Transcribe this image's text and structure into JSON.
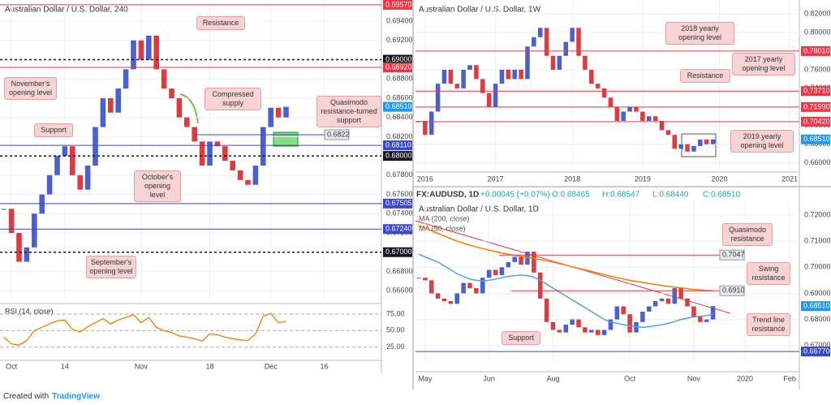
{
  "chart_data": [
    {
      "type": "candlestick",
      "title": "Australian Dollar / U.S. Dollar, 240",
      "categories": [
        null,
        "Oct",
        null,
        null,
        null,
        null,
        null,
        null,
        "14",
        null,
        null,
        null,
        null,
        null,
        null,
        null,
        null,
        null,
        "Nov",
        null,
        null,
        null,
        null,
        null,
        null,
        null,
        null,
        "18",
        null,
        null,
        null,
        null,
        null,
        null,
        null,
        "Dec",
        null,
        null,
        null,
        null,
        null,
        null,
        "16",
        null,
        null,
        null,
        null,
        null,
        null,
        null
      ],
      "values": [
        0.6745,
        0.672,
        0.669,
        0.6705,
        0.674,
        0.676,
        0.678,
        0.68,
        0.681,
        0.678,
        0.6765,
        0.679,
        0.683,
        0.686,
        0.6845,
        0.687,
        0.689,
        0.692,
        0.69,
        0.6925,
        0.689,
        0.687,
        0.686,
        0.684,
        0.683,
        0.6815,
        0.679,
        0.6815,
        0.681,
        0.6795,
        0.6785,
        0.6775,
        0.677,
        0.679,
        0.683,
        0.685,
        0.684,
        0.6851,
        null,
        null,
        null,
        null,
        null,
        null,
        null,
        null,
        null,
        null,
        null,
        null
      ],
      "up_color": "#4a5fd0",
      "down_color": "#e0393e",
      "ylim": [
        0.665,
        0.6962
      ],
      "yticks": [
        {
          "value": 0.666,
          "label": "0.66600"
        },
        {
          "value": 0.668,
          "label": "0.66800"
        },
        {
          "value": 0.67,
          "label": "0.67000"
        },
        {
          "value": 0.672,
          "label": "0.67200"
        },
        {
          "value": 0.674,
          "label": "0.67400"
        },
        {
          "value": 0.676,
          "label": "0.67600"
        },
        {
          "value": 0.678,
          "label": "0.67800"
        },
        {
          "value": 0.68,
          "label": "0.68000"
        },
        {
          "value": 0.682,
          "label": "0.68200"
        },
        {
          "value": 0.684,
          "label": "0.68400"
        },
        {
          "value": 0.686,
          "label": "0.68600"
        },
        {
          "value": 0.688,
          "label": "0.68800"
        },
        {
          "value": 0.69,
          "label": "0.69000"
        },
        {
          "value": 0.692,
          "label": "0.69200"
        },
        {
          "value": 0.694,
          "label": "0.69400"
        }
      ],
      "levels": [
        {
          "value": 0.6957,
          "label": "0.69570",
          "color": "#f23645",
          "line_style": "solid"
        },
        {
          "value": 0.69,
          "label": "0.69000",
          "color": "#131722",
          "line_style": "dashed"
        },
        {
          "value": 0.6892,
          "label": "0.68920",
          "color": "#f23645",
          "line_style": "solid"
        },
        {
          "value": 0.6851,
          "label": "0.68510",
          "color": "#2196f3",
          "line_style": "none"
        },
        {
          "value": 0.6811,
          "label": "0.68110",
          "color": "#3949c8",
          "line_style": "solid"
        },
        {
          "value": 0.68,
          "label": "0.68000",
          "color": "#131722",
          "line_style": "dashed"
        },
        {
          "value": 0.67505,
          "label": "0.67505",
          "color": "#3949c8",
          "line_style": "solid"
        },
        {
          "value": 0.6724,
          "label": "0.67240",
          "color": "#3949c8",
          "line_style": "solid"
        },
        {
          "value": 0.67,
          "label": "0.67000",
          "color": "#131722",
          "line_style": "dashed"
        }
      ],
      "notes": [
        {
          "value": 0.6822,
          "label": "0.6822"
        }
      ],
      "note_color": "#3949c8",
      "annotations": [
        "Resistance",
        "November's opening level",
        "Compressed supply",
        "Quasimodo resistance-turned support",
        "Support",
        "October's opening level",
        "September's opening level"
      ],
      "rsi": {
        "label": "RSI (14, close)",
        "color": "#f57c00",
        "ylim": [
          10,
          86
        ],
        "yticks": [
          {
            "value": 75,
            "label": "75.00"
          },
          {
            "value": 50,
            "label": "50.00"
          },
          {
            "value": 25,
            "label": "25.00"
          }
        ],
        "values": [
          40,
          30,
          28,
          35,
          50,
          55,
          60,
          65,
          66,
          52,
          48,
          56,
          62,
          68,
          60,
          66,
          70,
          74,
          62,
          70,
          55,
          50,
          47,
          42,
          40,
          38,
          34,
          45,
          44,
          40,
          38,
          36,
          35,
          45,
          72,
          76,
          62,
          64,
          null,
          null,
          null,
          null,
          null,
          null,
          null,
          null,
          null,
          null,
          null,
          null
        ]
      }
    },
    {
      "type": "candlestick",
      "title": "Australian Dollar / U.S. Dollar, 1W",
      "categories": [
        null,
        "2016",
        null,
        null,
        null,
        null,
        null,
        null,
        null,
        null,
        null,
        null,
        "2017",
        null,
        null,
        null,
        null,
        null,
        null,
        null,
        null,
        null,
        null,
        null,
        "2018",
        null,
        null,
        null,
        null,
        null,
        null,
        null,
        null,
        null,
        null,
        "2019",
        null,
        null,
        null,
        null,
        null,
        null,
        null,
        null,
        null,
        null,
        null,
        "2020",
        null,
        null,
        null,
        null,
        null,
        null,
        null,
        null,
        null,
        null,
        "2021",
        null
      ],
      "values": [
        0.705,
        0.69,
        0.715,
        0.745,
        0.76,
        0.745,
        0.74,
        0.76,
        0.765,
        0.75,
        0.735,
        0.72,
        0.745,
        0.76,
        0.75,
        0.76,
        0.75,
        0.785,
        0.795,
        0.805,
        0.775,
        0.76,
        0.775,
        0.79,
        0.805,
        0.775,
        0.76,
        0.745,
        0.74,
        0.73,
        0.72,
        0.705,
        0.715,
        0.72,
        0.715,
        0.705,
        0.71,
        0.705,
        0.695,
        0.69,
        0.675,
        0.68,
        0.672,
        0.678,
        0.685,
        0.68,
        0.6851,
        null,
        null,
        null,
        null,
        null,
        null,
        null,
        null,
        null,
        null,
        null,
        null,
        null
      ],
      "up_color": "#4a5fd0",
      "down_color": "#e0393e",
      "ylim": [
        0.65,
        0.835
      ],
      "yticks": [
        {
          "value": 0.66,
          "label": "0.66000"
        },
        {
          "value": 0.68,
          "label": "0.68000"
        },
        {
          "value": 0.7,
          "label": "0.70000"
        },
        {
          "value": 0.72,
          "label": "0.72000"
        },
        {
          "value": 0.74,
          "label": "0.74000"
        },
        {
          "value": 0.76,
          "label": "0.76000"
        },
        {
          "value": 0.78,
          "label": "0.78000"
        },
        {
          "value": 0.8,
          "label": "0.80000"
        },
        {
          "value": 0.82,
          "label": "0.82000"
        }
      ],
      "levels": [
        {
          "value": 0.7801,
          "label": "0.78010",
          "color": "#f23645",
          "line_style": "solid"
        },
        {
          "value": 0.7371,
          "label": "0.73710",
          "color": "#f23645",
          "line_style": "solid"
        },
        {
          "value": 0.7199,
          "label": "0.71990",
          "color": "#f23645",
          "line_style": "solid"
        },
        {
          "value": 0.7042,
          "label": "0.70420",
          "color": "#f23645",
          "line_style": "solid"
        },
        {
          "value": 0.6851,
          "label": "0.68510",
          "color": "#2196f3",
          "line_style": "none"
        }
      ],
      "annotations": [
        "2018 yearly opening level",
        "2017 yearly opening level",
        "Resistance",
        "2019 yearly opening level"
      ]
    },
    {
      "type": "candlestick",
      "title": "Australian Dollar / U.S. Dollar, 1D",
      "symbol": "FX:AUDUSD, 1D",
      "ohlc": [
        "O:0.68465",
        "H:0.68547",
        "L:0.68440",
        "C:0.68510"
      ],
      "change": "+0.00045 (+0.07%)",
      "categories": [
        null,
        "May",
        null,
        null,
        null,
        null,
        null,
        null,
        null,
        null,
        null,
        "Jun",
        null,
        null,
        null,
        null,
        null,
        null,
        null,
        null,
        null,
        "Aug",
        null,
        null,
        null,
        null,
        null,
        null,
        null,
        null,
        null,
        null,
        null,
        "Oct",
        null,
        null,
        null,
        null,
        null,
        null,
        null,
        null,
        null,
        "Nov",
        null,
        null,
        null,
        null,
        null,
        null,
        null,
        "2020",
        null,
        null,
        null,
        null,
        null,
        null,
        "Feb",
        null
      ],
      "values": [
        0.696,
        0.695,
        0.69,
        0.688,
        0.687,
        0.686,
        0.69,
        0.694,
        0.692,
        0.69,
        0.696,
        0.699,
        0.697,
        0.7,
        0.702,
        0.704,
        0.701,
        0.706,
        0.698,
        0.688,
        0.679,
        0.676,
        0.675,
        0.678,
        0.68,
        0.677,
        0.675,
        0.676,
        0.674,
        0.676,
        0.68,
        0.685,
        0.682,
        0.675,
        0.679,
        0.683,
        0.685,
        0.687,
        0.688,
        0.686,
        0.692,
        0.688,
        0.685,
        0.681,
        0.679,
        0.68,
        0.6851,
        null,
        null,
        null,
        null,
        null,
        null,
        null,
        null,
        null,
        null,
        null,
        null,
        null
      ],
      "series": [
        {
          "name": "MA (200, close)",
          "color": "#f57c00",
          "values": [
            0.716,
            0.715,
            0.714,
            0.713,
            0.712,
            0.711,
            0.71,
            0.7092,
            0.7085,
            0.7078,
            0.7072,
            0.7066,
            0.706,
            0.7055,
            0.705,
            0.7046,
            0.7042,
            0.7038,
            0.7034,
            0.703,
            0.7025,
            0.702,
            0.7014,
            0.7008,
            0.7002,
            0.6996,
            0.699,
            0.6984,
            0.6978,
            0.6972,
            0.6966,
            0.696,
            0.6955,
            0.695,
            0.6946,
            0.6942,
            0.6938,
            0.6934,
            0.693,
            0.6927,
            0.6924,
            0.6921,
            0.6918,
            0.6915,
            0.6913,
            0.6911,
            0.691,
            null,
            null,
            null,
            null,
            null,
            null,
            null,
            null,
            null,
            null,
            null,
            null,
            null
          ]
        },
        {
          "name": "MA (50, close)",
          "color": "#4fa3e0",
          "values": [
            0.705,
            0.704,
            0.703,
            0.702,
            0.7005,
            0.699,
            0.6975,
            0.6965,
            0.6955,
            0.695,
            0.6948,
            0.695,
            0.6955,
            0.696,
            0.6965,
            0.6968,
            0.697,
            0.6968,
            0.6962,
            0.695,
            0.6935,
            0.692,
            0.6905,
            0.689,
            0.6875,
            0.686,
            0.6845,
            0.683,
            0.6815,
            0.68,
            0.679,
            0.6785,
            0.678,
            0.6775,
            0.6772,
            0.677,
            0.6772,
            0.6776,
            0.678,
            0.6785,
            0.6792,
            0.68,
            0.6805,
            0.681,
            0.6812,
            0.6815,
            0.682,
            null,
            null,
            null,
            null,
            null,
            null,
            null,
            null,
            null,
            null,
            null,
            null,
            null
          ]
        }
      ],
      "up_color": "#4a5fd0",
      "down_color": "#e0393e",
      "ylim": [
        0.664,
        0.7253
      ],
      "yticks": [
        {
          "value": 0.67,
          "label": "0.67000"
        },
        {
          "value": 0.68,
          "label": "0.68000"
        },
        {
          "value": 0.69,
          "label": "0.69000"
        },
        {
          "value": 0.7,
          "label": "0.70000"
        },
        {
          "value": 0.71,
          "label": "0.71000"
        },
        {
          "value": 0.72,
          "label": "0.72000"
        }
      ],
      "levels": [
        {
          "value": 0.6851,
          "label": "0.68510",
          "color": "#2196f3",
          "line_style": "none"
        },
        {
          "value": 0.6677,
          "label": "0.66770",
          "color": "#3949c8",
          "line_style": "solid"
        }
      ],
      "notes": [
        {
          "value": 0.7047,
          "label": "0.7047"
        },
        {
          "value": 0.691,
          "label": "0.6910"
        }
      ],
      "note_color": "#f23645",
      "annotations": [
        "Quasimodo resistance",
        "Swing resistance",
        "Trend line resistance",
        "Support"
      ]
    }
  ],
  "footer": {
    "text": "Created with",
    "brand": "TradingView"
  }
}
